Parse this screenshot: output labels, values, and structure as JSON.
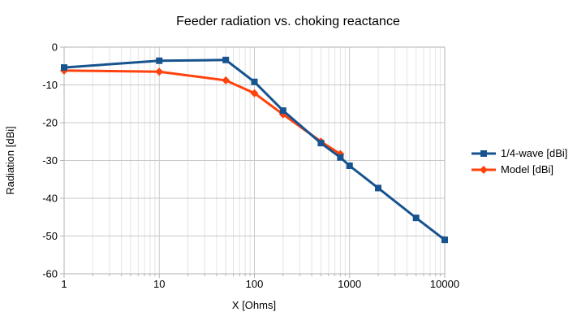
{
  "title": "Feeder radiation vs. choking reactance",
  "chart_data": {
    "type": "line",
    "title": "Feeder radiation vs. choking reactance",
    "xlabel": "X [Ohms]",
    "ylabel": "Radiation [dBi]",
    "x_scale": "log",
    "xlim": [
      1,
      10000
    ],
    "ylim": [
      -60,
      0
    ],
    "x_ticks": [
      "1",
      "10",
      "100",
      "1000",
      "10000"
    ],
    "y_ticks": [
      "0",
      "-10",
      "-20",
      "-30",
      "-40",
      "-50",
      "-60"
    ],
    "grid": "horizontal-major + vertical-major-and-log-minor",
    "legend_position": "right-middle",
    "colors": {
      "series1": "#17538f",
      "series2": "#ff420e",
      "grid_minor": "#e4e4e4",
      "grid_major": "#c8c8c8",
      "plot_border": "#b3b3b3"
    },
    "series": [
      {
        "name": "1/4-wave [dBi]",
        "color": "#17538f",
        "marker": "square",
        "x": [
          1,
          10,
          50,
          100,
          200,
          500,
          800,
          1000,
          2000,
          5000,
          10000
        ],
        "y": [
          -5.4,
          -3.6,
          -3.4,
          -9.2,
          -16.8,
          -25.4,
          -29.2,
          -31.4,
          -37.3,
          -45.2,
          -51.0
        ]
      },
      {
        "name": "Model [dBi]",
        "color": "#ff420e",
        "marker": "diamond",
        "x": [
          1,
          10,
          50,
          100,
          200,
          500,
          800
        ],
        "y": [
          -6.2,
          -6.5,
          -8.8,
          -12.2,
          -17.8,
          -25.0,
          -28.3
        ]
      }
    ]
  }
}
